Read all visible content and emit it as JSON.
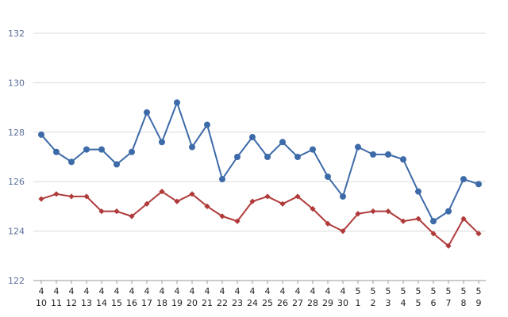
{
  "chart_data": {
    "type": "line",
    "title": "",
    "xlabel": "",
    "ylabel": "",
    "ylim": [
      122,
      132
    ],
    "yticks": [
      "122",
      "124",
      "126",
      "128",
      "130",
      "132"
    ],
    "grid": "horizontal",
    "categories": [
      {
        "month": "4",
        "day": "10"
      },
      {
        "month": "4",
        "day": "11"
      },
      {
        "month": "4",
        "day": "12"
      },
      {
        "month": "4",
        "day": "13"
      },
      {
        "month": "4",
        "day": "14"
      },
      {
        "month": "4",
        "day": "15"
      },
      {
        "month": "4",
        "day": "16"
      },
      {
        "month": "4",
        "day": "17"
      },
      {
        "month": "4",
        "day": "18"
      },
      {
        "month": "4",
        "day": "19"
      },
      {
        "month": "4",
        "day": "20"
      },
      {
        "month": "4",
        "day": "21"
      },
      {
        "month": "4",
        "day": "22"
      },
      {
        "month": "4",
        "day": "23"
      },
      {
        "month": "4",
        "day": "24"
      },
      {
        "month": "4",
        "day": "25"
      },
      {
        "month": "4",
        "day": "26"
      },
      {
        "month": "4",
        "day": "27"
      },
      {
        "month": "4",
        "day": "28"
      },
      {
        "month": "4",
        "day": "29"
      },
      {
        "month": "4",
        "day": "30"
      },
      {
        "month": "5",
        "day": "1"
      },
      {
        "month": "5",
        "day": "2"
      },
      {
        "month": "5",
        "day": "3"
      },
      {
        "month": "5",
        "day": "4"
      },
      {
        "month": "5",
        "day": "5"
      },
      {
        "month": "5",
        "day": "6"
      },
      {
        "month": "5",
        "day": "7"
      },
      {
        "month": "5",
        "day": "8"
      },
      {
        "month": "5",
        "day": "9"
      }
    ],
    "series": [
      {
        "marker": "circle",
        "color": "#3d6aa8",
        "values": [
          127.9,
          127.2,
          126.8,
          127.3,
          127.3,
          126.7,
          127.2,
          128.8,
          127.6,
          129.2,
          127.4,
          128.3,
          126.1,
          127.0,
          127.8,
          127.0,
          127.6,
          127.0,
          127.3,
          126.2,
          125.4,
          127.4,
          127.1,
          127.1,
          126.9,
          125.6,
          124.4,
          124.8,
          126.1,
          125.9
        ]
      },
      {
        "marker": "diamond",
        "color": "#b03a3a",
        "values": [
          125.3,
          125.5,
          125.4,
          125.4,
          124.8,
          124.8,
          124.6,
          125.1,
          125.6,
          125.2,
          125.5,
          125.0,
          124.6,
          124.4,
          125.2,
          125.4,
          125.1,
          125.4,
          124.9,
          124.3,
          124.0,
          124.7,
          124.8,
          124.8,
          124.4,
          124.5,
          123.9,
          123.4,
          124.5,
          123.9
        ]
      }
    ]
  }
}
